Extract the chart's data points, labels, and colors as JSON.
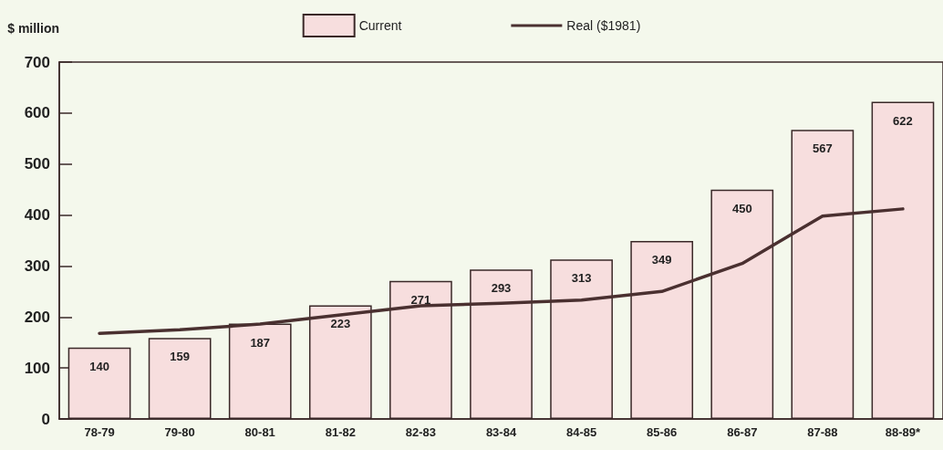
{
  "chart_data": {
    "type": "bar",
    "ylabel": "$ million",
    "categories": [
      "78-79",
      "79-80",
      "80-81",
      "81-82",
      "82-83",
      "83-84",
      "84-85",
      "85-86",
      "86-87",
      "87-88",
      "88-89*"
    ],
    "series": [
      {
        "name": "Current",
        "type": "bar",
        "color": "#f7dede",
        "values": [
          140,
          159,
          187,
          223,
          271,
          293,
          313,
          349,
          450,
          567,
          622
        ],
        "data_labels": true
      },
      {
        "name": "Real ($1981)",
        "type": "line",
        "color": "#4a3030",
        "values": [
          168,
          175,
          186,
          204,
          222,
          227,
          233,
          250,
          305,
          398,
          412
        ],
        "marker": "none"
      }
    ],
    "ylim": [
      0,
      700
    ],
    "yticks": [
      0,
      100,
      200,
      300,
      400,
      500,
      600,
      700
    ],
    "grid": false,
    "legend": "top"
  }
}
